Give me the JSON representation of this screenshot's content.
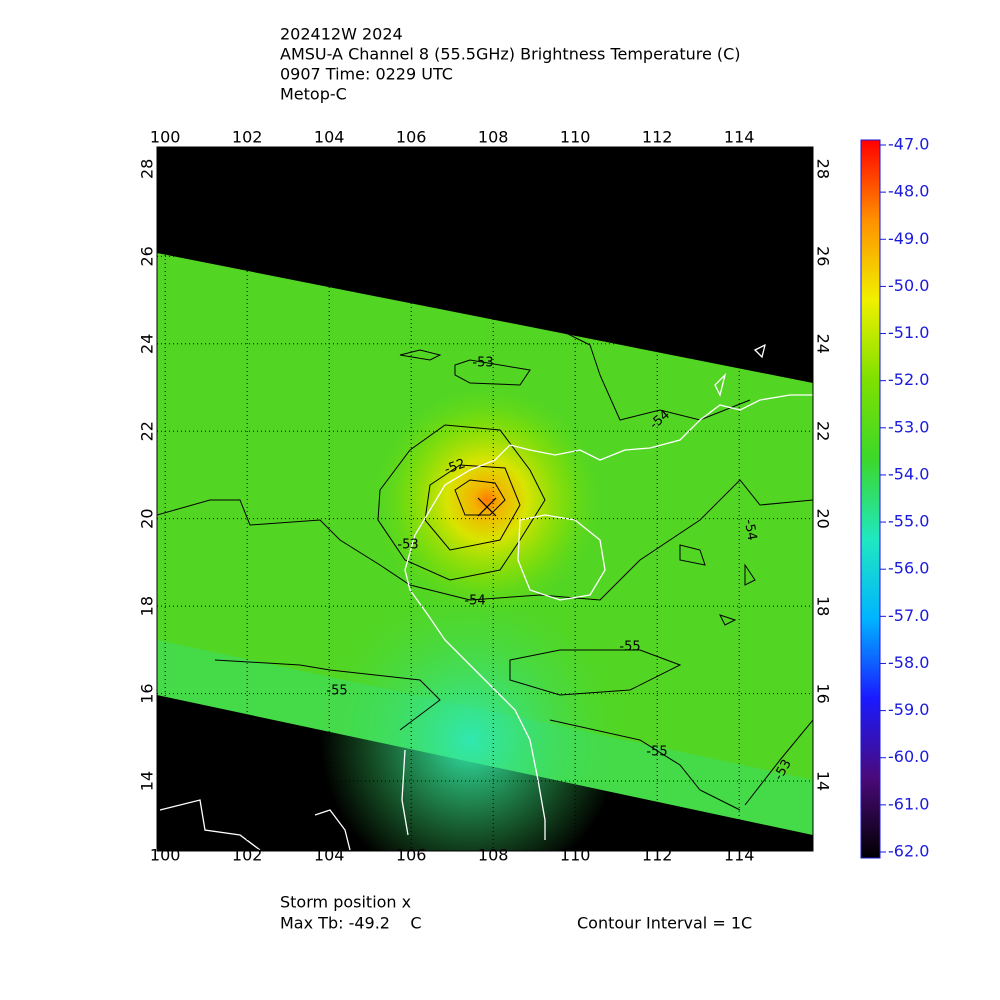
{
  "header": {
    "lines": [
      "202412W 2024",
      "AMSU-A Channel 8 (55.5GHz) Brightness Temperature (C)",
      "0907 Time: 0229 UTC",
      "Metop-C"
    ]
  },
  "map": {
    "xlim": [
      99.8,
      115.8
    ],
    "ylim": [
      12.4,
      28.5
    ],
    "xticks": [
      100,
      102,
      104,
      106,
      108,
      110,
      112,
      114
    ],
    "yticks": [
      14,
      16,
      18,
      20,
      22,
      24,
      26,
      28
    ],
    "grid": true,
    "contour_labels": [
      -53,
      -54,
      -52,
      -53,
      -54,
      -54,
      -55,
      -55,
      -55,
      -53
    ]
  },
  "colorbar": {
    "clim": [
      -62,
      -47
    ],
    "ticks": [
      {
        "value": -47,
        "label": "-47.0"
      },
      {
        "value": -48,
        "label": "-48.0"
      },
      {
        "value": -49,
        "label": "-49.0"
      },
      {
        "value": -50,
        "label": "-50.0"
      },
      {
        "value": -51,
        "label": "-51.0"
      },
      {
        "value": -52,
        "label": "-52.0"
      },
      {
        "value": -53,
        "label": "-53.0"
      },
      {
        "value": -54,
        "label": "-54.0"
      },
      {
        "value": -55,
        "label": "-55.0"
      },
      {
        "value": -56,
        "label": "-56.0"
      },
      {
        "value": -57,
        "label": "-57.0"
      },
      {
        "value": -58,
        "label": "-58.0"
      },
      {
        "value": -59,
        "label": "-59.0"
      },
      {
        "value": -60,
        "label": "-60.0"
      },
      {
        "value": -61,
        "label": "-61.0"
      },
      {
        "value": -62,
        "label": "-62.0"
      }
    ],
    "colors": [
      "#000000",
      "#4a0a7a",
      "#1a1aff",
      "#00b4ff",
      "#20e8c0",
      "#3cd82a",
      "#7fe000",
      "#f0f000",
      "#ff9000",
      "#ff0000"
    ]
  },
  "footer": {
    "storm": "Storm position x",
    "max_tb": "Max Tb: -49.2    C",
    "interval": "Contour Interval = 1C"
  }
}
